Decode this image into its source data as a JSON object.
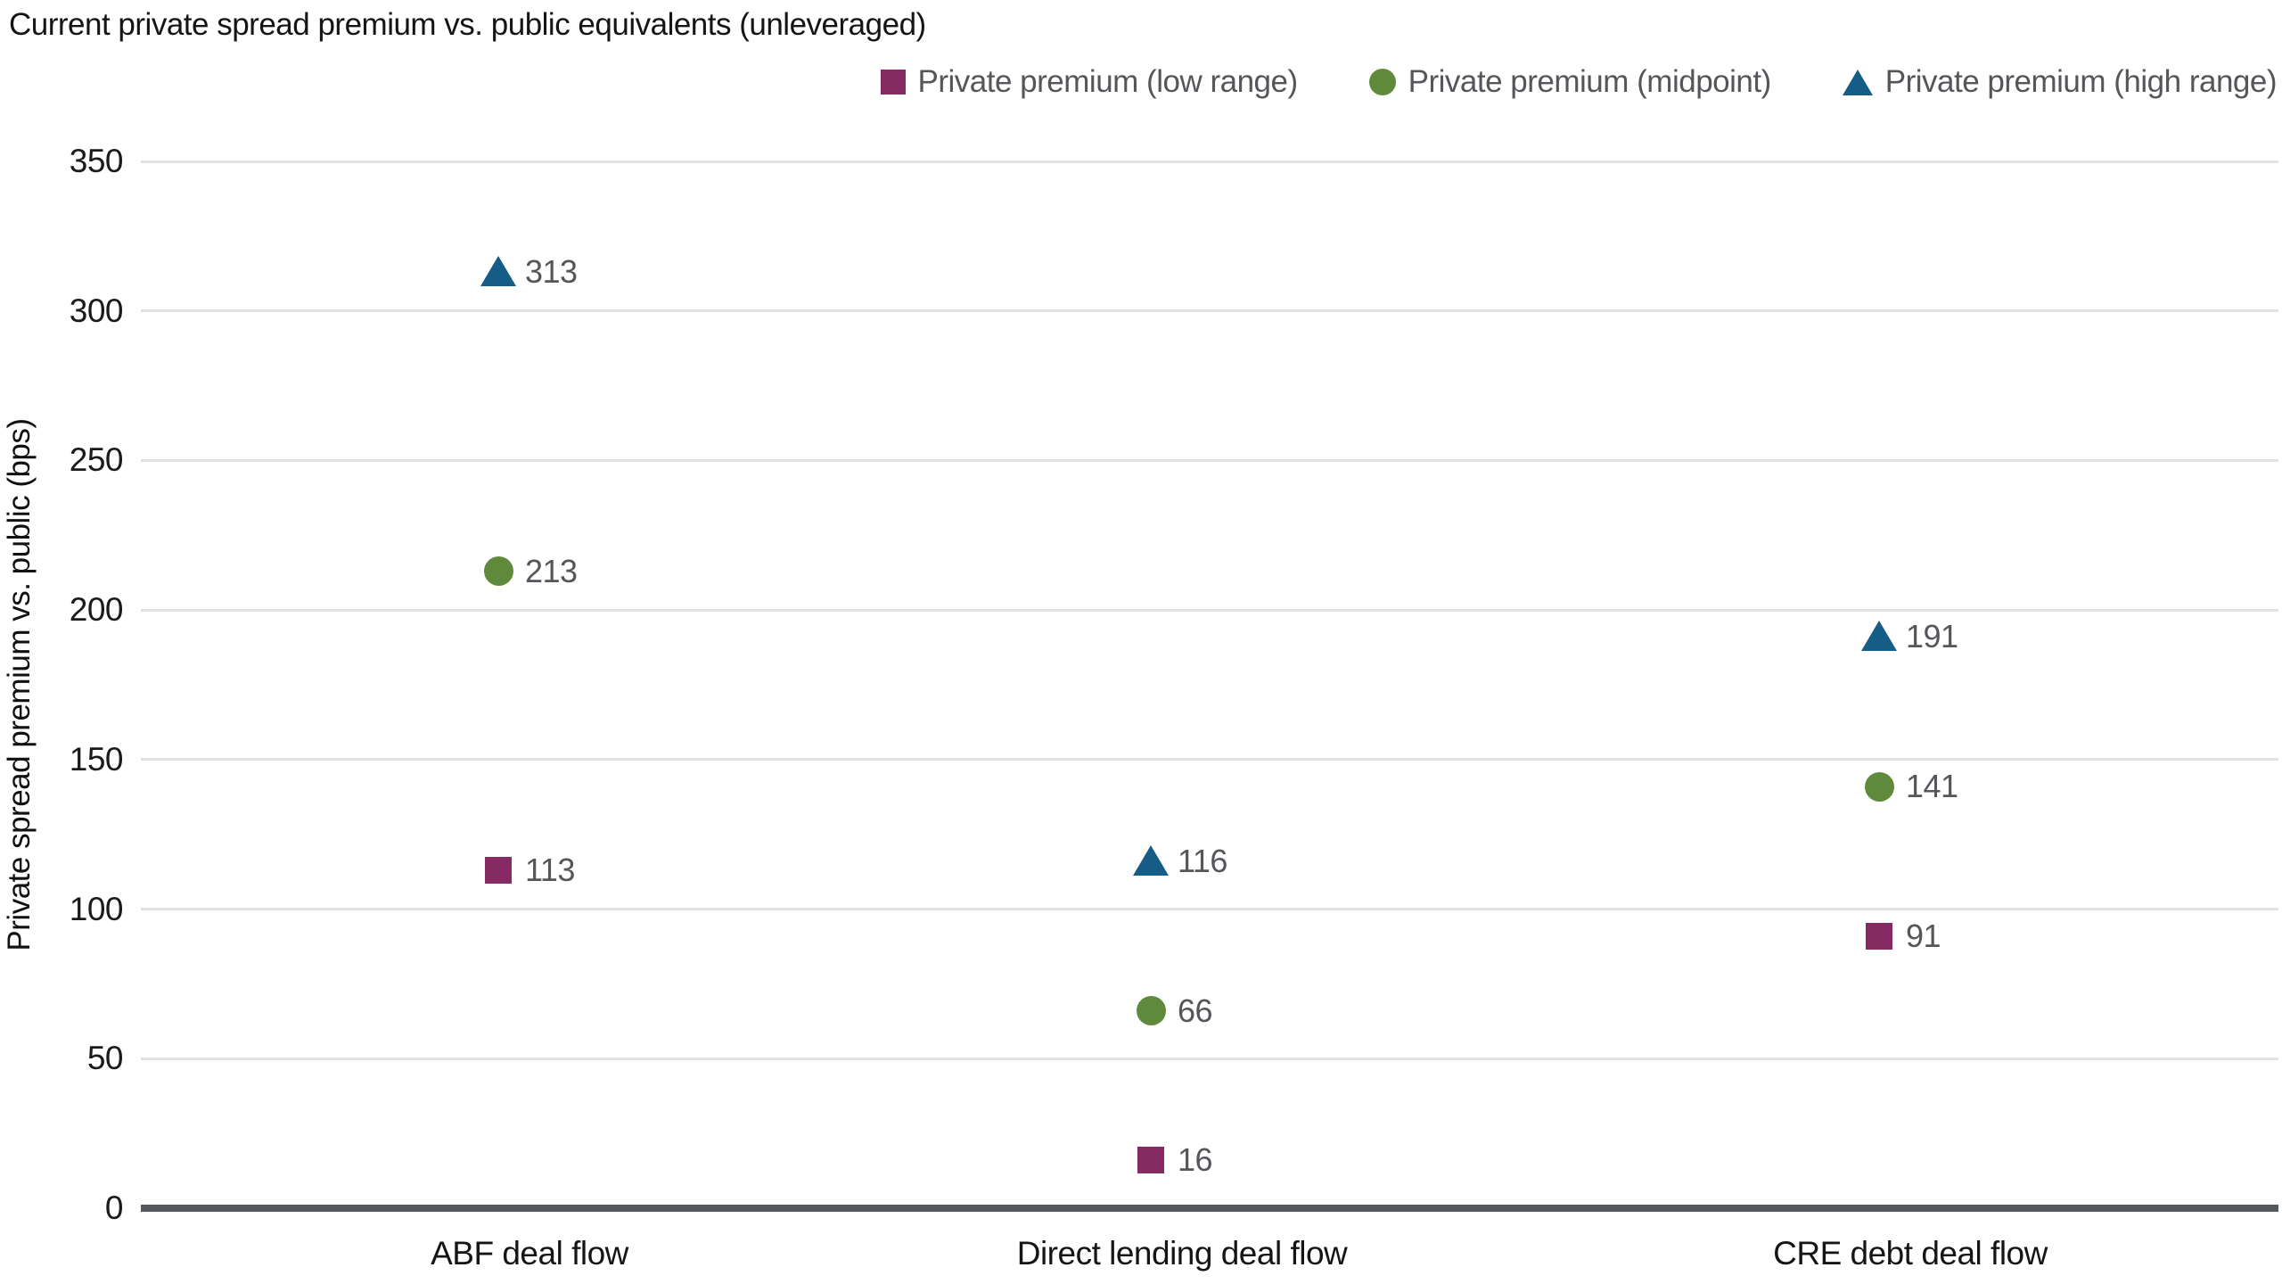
{
  "title": "Current private spread premium vs. public equivalents (unleveraged)",
  "chart_data": {
    "type": "scatter",
    "title": "Current private spread premium vs. public equivalents (unleveraged)",
    "categories": [
      "ABF deal flow",
      "Direct lending deal flow",
      "CRE debt deal flow"
    ],
    "series": [
      {
        "name": "Private premium (low range)",
        "marker": "square",
        "color": "#862A64",
        "values": [
          113,
          16,
          91
        ]
      },
      {
        "name": "Private premium (midpoint)",
        "marker": "circle",
        "color": "#5F8A3C",
        "values": [
          213,
          66,
          141
        ]
      },
      {
        "name": "Private premium (high range)",
        "marker": "triangle",
        "color": "#155C87",
        "values": [
          313,
          116,
          191
        ]
      }
    ],
    "xlabel": "",
    "ylabel": "Private spread premium vs. public (bps)",
    "ylim": [
      0,
      350
    ],
    "yticks": [
      0,
      50,
      100,
      150,
      200,
      250,
      300,
      350
    ],
    "grid": true,
    "point_labels": true,
    "legend_position": "top-right"
  },
  "colors": {
    "low_range": "#862A64",
    "midpoint": "#5F8A3C",
    "high_range": "#155C87",
    "gridline": "#E2E2E2",
    "axis_line": "#54575C",
    "value_text": "#54565A",
    "tick_text": "#1A1A1A"
  }
}
